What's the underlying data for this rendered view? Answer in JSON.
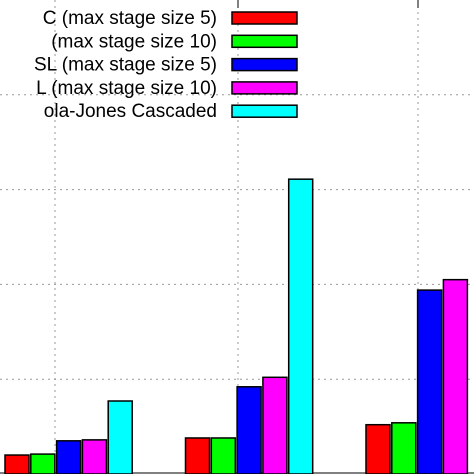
{
  "chart_data": {
    "type": "bar",
    "categories": [
      null,
      null,
      null
    ],
    "series": [
      {
        "name": "C (max stage size 5)",
        "color": "#ff0000",
        "values": [
          0.2,
          0.38,
          0.52
        ]
      },
      {
        "name": "(max stage size 10)",
        "color": "#00ff00",
        "values": [
          0.21,
          0.38,
          0.54
        ]
      },
      {
        "name": "SL (max stage size 5)",
        "color": "#0000ff",
        "values": [
          0.35,
          0.92,
          1.94
        ]
      },
      {
        "name": "L (max stage size 10)",
        "color": "#ff00ff",
        "values": [
          0.36,
          1.02,
          2.05
        ]
      },
      {
        "name": "ola-Jones Cascaded",
        "color": "#00ffff",
        "values": [
          0.77,
          3.11,
          null
        ]
      }
    ],
    "ylim": [
      0,
      5
    ],
    "yticks": [
      1,
      2,
      3,
      4
    ],
    "grid": true
  }
}
